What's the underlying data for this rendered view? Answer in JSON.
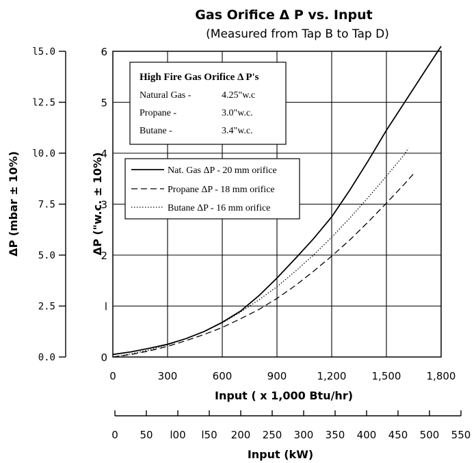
{
  "chart_data": {
    "type": "line",
    "title": "Gas Orifice Δ P vs. Input",
    "subtitle": "(Measured from Tap B to Tap D)",
    "xlabel": "Input  ( x 1,000 Btu/hr)",
    "xlabel2": "Input (kW)",
    "ylabel": "ΔP  (\"w.c. ± 10%)",
    "ylabel2": "ΔP  (mbar ± 10%)",
    "xlim": [
      0,
      1800
    ],
    "ylim": [
      0,
      6
    ],
    "x_ticks": [
      "0",
      "300",
      "600",
      "900",
      "1,200",
      "1,500",
      "1,800"
    ],
    "y_ticks": [
      "0",
      "l",
      "2",
      "3",
      "4",
      "5",
      "6"
    ],
    "y2_ticks": [
      "0.0",
      "2.5",
      "5.0",
      "7.5",
      "l0.0",
      "l2.5",
      "l5.0"
    ],
    "kw_ticks": [
      "0",
      "50",
      "l00",
      "l50",
      "200",
      "250",
      "300",
      "350",
      "400",
      "450",
      "500",
      "550"
    ],
    "grid": true,
    "legend_position": "center-left",
    "series": [
      {
        "name": "Nat. Gas ΔP - 20 mm orifice",
        "style": "solid",
        "x": [
          0,
          100,
          200,
          300,
          400,
          500,
          600,
          700,
          800,
          900,
          1000,
          1100,
          1200,
          1300,
          1400,
          1500,
          1600,
          1700,
          1800
        ],
        "y": [
          0.05,
          0.1,
          0.17,
          0.25,
          0.36,
          0.5,
          0.68,
          0.9,
          1.2,
          1.55,
          1.93,
          2.32,
          2.75,
          3.28,
          3.85,
          4.45,
          5.0,
          5.55,
          6.1
        ]
      },
      {
        "name": "Propane  ΔP - 18 mm orifice",
        "style": "dashed",
        "x": [
          0,
          100,
          200,
          300,
          400,
          500,
          600,
          700,
          800,
          900,
          1000,
          1100,
          1200,
          1300,
          1400,
          1500,
          1600,
          1650
        ],
        "y": [
          0.0,
          0.05,
          0.12,
          0.21,
          0.32,
          0.44,
          0.58,
          0.75,
          0.93,
          1.15,
          1.4,
          1.68,
          1.98,
          2.3,
          2.65,
          3.02,
          3.4,
          3.6
        ]
      },
      {
        "name": "Butane   ΔP - 16 mm orifice",
        "style": "dotted",
        "x": [
          0,
          100,
          200,
          300,
          400,
          500,
          600,
          700,
          800,
          900,
          1000,
          1100,
          1200,
          1300,
          1400,
          1500,
          1600,
          1620
        ],
        "y": [
          0.0,
          0.06,
          0.14,
          0.24,
          0.36,
          0.5,
          0.67,
          0.88,
          1.12,
          1.38,
          1.68,
          2.0,
          2.35,
          2.73,
          3.13,
          3.55,
          3.98,
          4.1
        ]
      }
    ],
    "info_box": {
      "title": "High Fire Gas Orifice Δ P's",
      "rows": [
        {
          "label": "Natural Gas -",
          "value": "4.25\"w.c"
        },
        {
          "label": "Propane -",
          "value": "3.0\"w.c."
        },
        {
          "label": "Butane -",
          "value": "3.4\"w.c."
        }
      ]
    }
  }
}
